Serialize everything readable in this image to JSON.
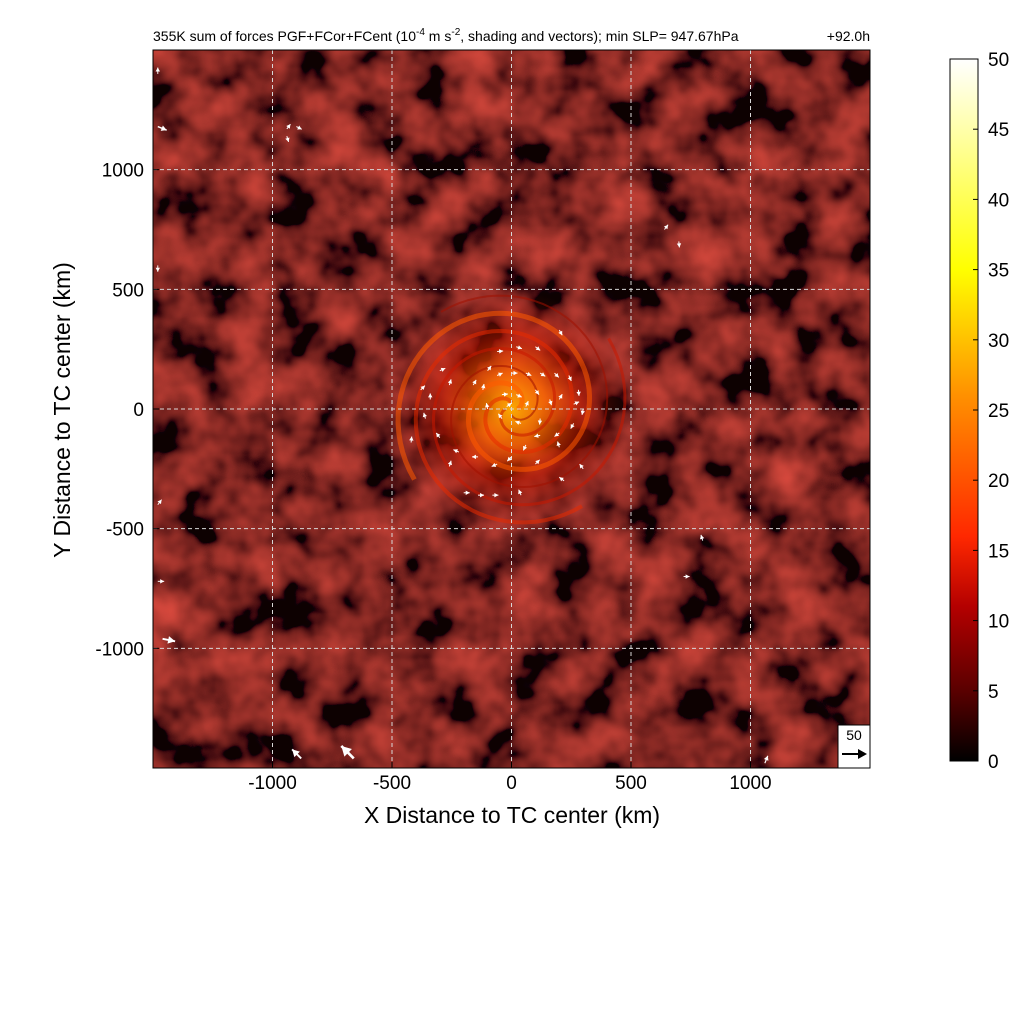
{
  "chart_data": {
    "type": "heatmap",
    "title": "355K sum of forces PGF+FCor+FCent (10",
    "title_exp": "-4",
    "title_mid": " m s",
    "title_exp2": "-2",
    "title_end": ", shading and vectors); min SLP= 947.67hPa",
    "time_label": "+92.0h",
    "xlabel": "X Distance to TC center (km)",
    "ylabel": "Y Distance to TC center (km)",
    "xlim": [
      -1500,
      1500
    ],
    "ylim": [
      -1500,
      1500
    ],
    "x_ticks": [
      -1000,
      -500,
      0,
      500,
      1000
    ],
    "y_ticks": [
      -1000,
      -500,
      0,
      500,
      1000
    ],
    "grid": true,
    "colorbar": {
      "range": [
        0,
        50
      ],
      "ticks": [
        0,
        5,
        10,
        15,
        20,
        25,
        30,
        35,
        40,
        45,
        50
      ],
      "colors": [
        "#000000",
        "#5a0000",
        "#b40000",
        "#ff3c00",
        "#ff9600",
        "#ffff00",
        "#ffffff"
      ]
    },
    "vector_key": {
      "label": "50"
    },
    "background_color": "#5e0c08",
    "eye_center_km": [
      0,
      0
    ],
    "vectors": [
      {
        "x": -100,
        "y": 160,
        "u": 0.6,
        "v": 0.8
      },
      {
        "x": -60,
        "y": 140,
        "u": 0.9,
        "v": 0.4
      },
      {
        "x": 0,
        "y": 150,
        "u": 1,
        "v": 0
      },
      {
        "x": 60,
        "y": 150,
        "u": 0.9,
        "v": -0.4
      },
      {
        "x": 120,
        "y": 150,
        "u": 0.8,
        "v": -0.5
      },
      {
        "x": 180,
        "y": 150,
        "u": 0.7,
        "v": -0.7
      },
      {
        "x": 240,
        "y": 140,
        "u": 0.4,
        "v": -0.9
      },
      {
        "x": 280,
        "y": 80,
        "u": 0.1,
        "v": -1
      },
      {
        "x": 300,
        "y": 0,
        "u": -0.2,
        "v": -1
      },
      {
        "x": 260,
        "y": -60,
        "u": -0.5,
        "v": -0.9
      },
      {
        "x": 200,
        "y": -100,
        "u": -0.8,
        "v": -0.6
      },
      {
        "x": 120,
        "y": -110,
        "u": -1,
        "v": -0.2
      },
      {
        "x": 40,
        "y": -60,
        "u": -0.9,
        "v": 0.3
      },
      {
        "x": -40,
        "y": -40,
        "u": -0.6,
        "v": 0.8
      },
      {
        "x": -100,
        "y": 0,
        "u": -0.2,
        "v": 1
      },
      {
        "x": -120,
        "y": 80,
        "u": 0.2,
        "v": 1
      },
      {
        "x": -160,
        "y": 100,
        "u": 0.5,
        "v": 0.9
      },
      {
        "x": -260,
        "y": 100,
        "u": 0.3,
        "v": 1
      },
      {
        "x": -340,
        "y": 40,
        "u": 0,
        "v": 1
      },
      {
        "x": -360,
        "y": -40,
        "u": -0.3,
        "v": 1
      },
      {
        "x": -300,
        "y": -120,
        "u": -0.6,
        "v": 0.8
      },
      {
        "x": -220,
        "y": -180,
        "u": -0.9,
        "v": 0.4
      },
      {
        "x": -140,
        "y": -200,
        "u": -1,
        "v": 0
      },
      {
        "x": -60,
        "y": -230,
        "u": -0.9,
        "v": -0.4
      },
      {
        "x": 0,
        "y": -200,
        "u": -0.7,
        "v": -0.7
      },
      {
        "x": 60,
        "y": -150,
        "u": -0.4,
        "v": -0.9
      },
      {
        "x": 120,
        "y": -40,
        "u": -0.1,
        "v": -1
      },
      {
        "x": 160,
        "y": 40,
        "u": 0.3,
        "v": -1
      },
      {
        "x": 100,
        "y": 80,
        "u": 0.6,
        "v": -0.8
      },
      {
        "x": 20,
        "y": 60,
        "u": 0.9,
        "v": -0.4
      },
      {
        "x": -40,
        "y": 60,
        "u": 1,
        "v": 0.1
      },
      {
        "x": -20,
        "y": 10,
        "u": 0.8,
        "v": 0.6
      },
      {
        "x": 60,
        "y": 10,
        "u": 0.4,
        "v": 0.9
      },
      {
        "x": 200,
        "y": 40,
        "u": 0.5,
        "v": 0.9
      },
      {
        "x": 260,
        "y": 20,
        "u": 0.9,
        "v": 0.4
      },
      {
        "x": 200,
        "y": -160,
        "u": -0.3,
        "v": 1
      },
      {
        "x": 100,
        "y": -230,
        "u": 0.7,
        "v": 0.7
      },
      {
        "x": -200,
        "y": -350,
        "u": 1,
        "v": 0
      },
      {
        "x": -140,
        "y": -360,
        "u": 1,
        "v": 0
      },
      {
        "x": -80,
        "y": -360,
        "u": 1,
        "v": 0
      },
      {
        "x": 40,
        "y": -360,
        "u": -0.4,
        "v": 0.9
      },
      {
        "x": 220,
        "y": -300,
        "u": -0.8,
        "v": 0.6
      },
      {
        "x": 300,
        "y": -250,
        "u": -0.6,
        "v": 0.8
      },
      {
        "x": -260,
        "y": -240,
        "u": 0.3,
        "v": 1
      },
      {
        "x": -420,
        "y": -140,
        "u": 0.1,
        "v": 1
      },
      {
        "x": -380,
        "y": 80,
        "u": 0.7,
        "v": 0.7
      },
      {
        "x": -300,
        "y": 160,
        "u": 0.9,
        "v": 0.4
      },
      {
        "x": -60,
        "y": 240,
        "u": 1,
        "v": 0.1
      },
      {
        "x": 20,
        "y": 260,
        "u": 0.9,
        "v": -0.3
      },
      {
        "x": 100,
        "y": 260,
        "u": 0.8,
        "v": -0.6
      },
      {
        "x": 200,
        "y": 330,
        "u": 0.5,
        "v": -0.9
      },
      {
        "x": -940,
        "y": 1170,
        "u": 0.6,
        "v": 0.8
      },
      {
        "x": -940,
        "y": 1140,
        "u": 0.3,
        "v": -1
      },
      {
        "x": -900,
        "y": 1180,
        "u": 0.8,
        "v": -0.4
      },
      {
        "x": 640,
        "y": 750,
        "u": 0.6,
        "v": 0.8
      },
      {
        "x": 700,
        "y": 700,
        "u": 0.1,
        "v": -1
      },
      {
        "x": 800,
        "y": -550,
        "u": -0.3,
        "v": 1
      },
      {
        "x": 720,
        "y": -700,
        "u": 1,
        "v": 0
      }
    ],
    "edge_vectors": [
      {
        "x": -880,
        "y": -1460,
        "u": -1,
        "v": 1,
        "s": 1.6
      },
      {
        "x": -660,
        "y": -1460,
        "u": -1,
        "v": 1,
        "s": 2.2
      },
      {
        "x": -1480,
        "y": 1180,
        "u": 1,
        "v": -0.4,
        "s": 1.2
      },
      {
        "x": -1460,
        "y": -960,
        "u": 1,
        "v": -0.2,
        "s": 1.6
      },
      {
        "x": -1480,
        "y": -720,
        "u": 1,
        "v": 0,
        "s": 0.8
      },
      {
        "x": -1480,
        "y": -400,
        "u": 0.6,
        "v": 0.8,
        "s": 0.8
      },
      {
        "x": -1480,
        "y": 600,
        "u": 0,
        "v": -1,
        "s": 0.8
      },
      {
        "x": -1480,
        "y": 1400,
        "u": 0,
        "v": 1,
        "s": 0.8
      },
      {
        "x": 1060,
        "y": -1480,
        "u": 0.4,
        "v": 1,
        "s": 1.0
      }
    ]
  }
}
